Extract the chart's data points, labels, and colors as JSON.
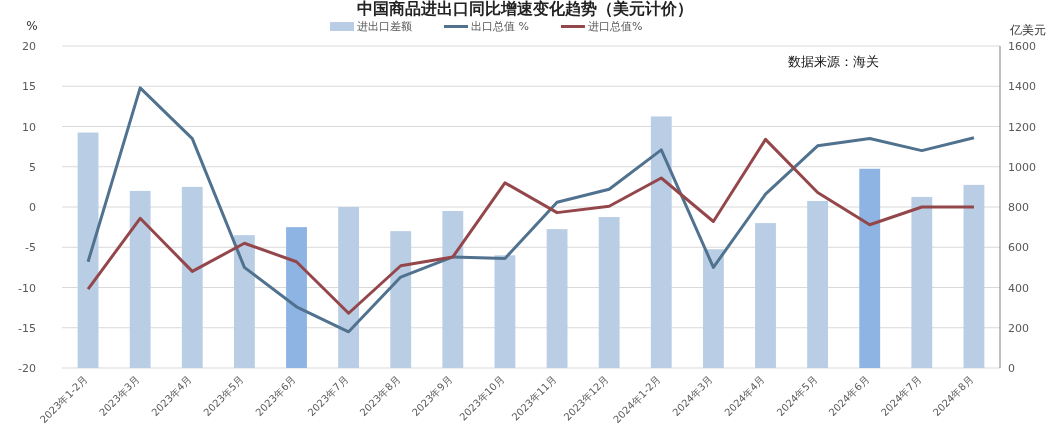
{
  "chart_data": {
    "type": "bar",
    "title": "中国商品进出口同比增速变化趋势（美元计价）",
    "ylabel": "%",
    "y2label": "亿美元",
    "annotations": [
      "数据来源：海关"
    ],
    "categories": [
      "2023年1-2月",
      "2023年3月",
      "2023年4月",
      "2023年5月",
      "2023年6月",
      "2023年7月",
      "2023年8月",
      "2023年9月",
      "2023年10月",
      "2023年11月",
      "2023年12月",
      "2024年1-2月",
      "2024年3月",
      "2024年4月",
      "2024年5月",
      "2024年6月",
      "2024年7月",
      "2024年8月"
    ],
    "series": [
      {
        "name": "进出口差额",
        "axis": "y2",
        "color": "#b9cde5",
        "colors": [
          "#b9cde5",
          "#b9cde5",
          "#b9cde5",
          "#b9cde5",
          "#8eb4e3",
          "#b9cde5",
          "#b9cde5",
          "#b9cde5",
          "#b9cde5",
          "#b9cde5",
          "#b9cde5",
          "#b9cde5",
          "#b9cde5",
          "#b9cde5",
          "#b9cde5",
          "#8eb4e3",
          "#b9cde5",
          "#b9cde5"
        ],
        "values": [
          1170,
          880,
          900,
          660,
          700,
          800,
          680,
          780,
          560,
          690,
          750,
          1250,
          590,
          720,
          830,
          990,
          850,
          910
        ]
      },
      {
        "name": "出口总值 %",
        "type": "line",
        "color": "#50728f",
        "values": [
          -6.8,
          14.8,
          8.5,
          -7.5,
          -12.4,
          -15.5,
          -8.7,
          -6.2,
          -6.4,
          0.6,
          2.2,
          7.1,
          -7.5,
          1.6,
          7.6,
          8.5,
          7.0,
          8.6
        ]
      },
      {
        "name": "进口总值%",
        "type": "line",
        "color": "#94474b",
        "values": [
          -10.2,
          -1.4,
          -8.0,
          -4.5,
          -6.8,
          -13.2,
          -7.3,
          -6.2,
          3.0,
          -0.7,
          0.1,
          3.6,
          -1.8,
          8.4,
          1.8,
          -2.2,
          0.0,
          0.0
        ]
      }
    ],
    "ylim": [
      -20,
      20
    ],
    "yticks": [
      -20,
      -15,
      -10,
      -5,
      0,
      5,
      10,
      15,
      20
    ],
    "y2lim": [
      0,
      1600
    ],
    "y2ticks": [
      0,
      200,
      400,
      600,
      800,
      1000,
      1200,
      1400,
      1600
    ],
    "grid": "y",
    "legend": "top",
    "line_style": "solid",
    "marker": "none"
  }
}
